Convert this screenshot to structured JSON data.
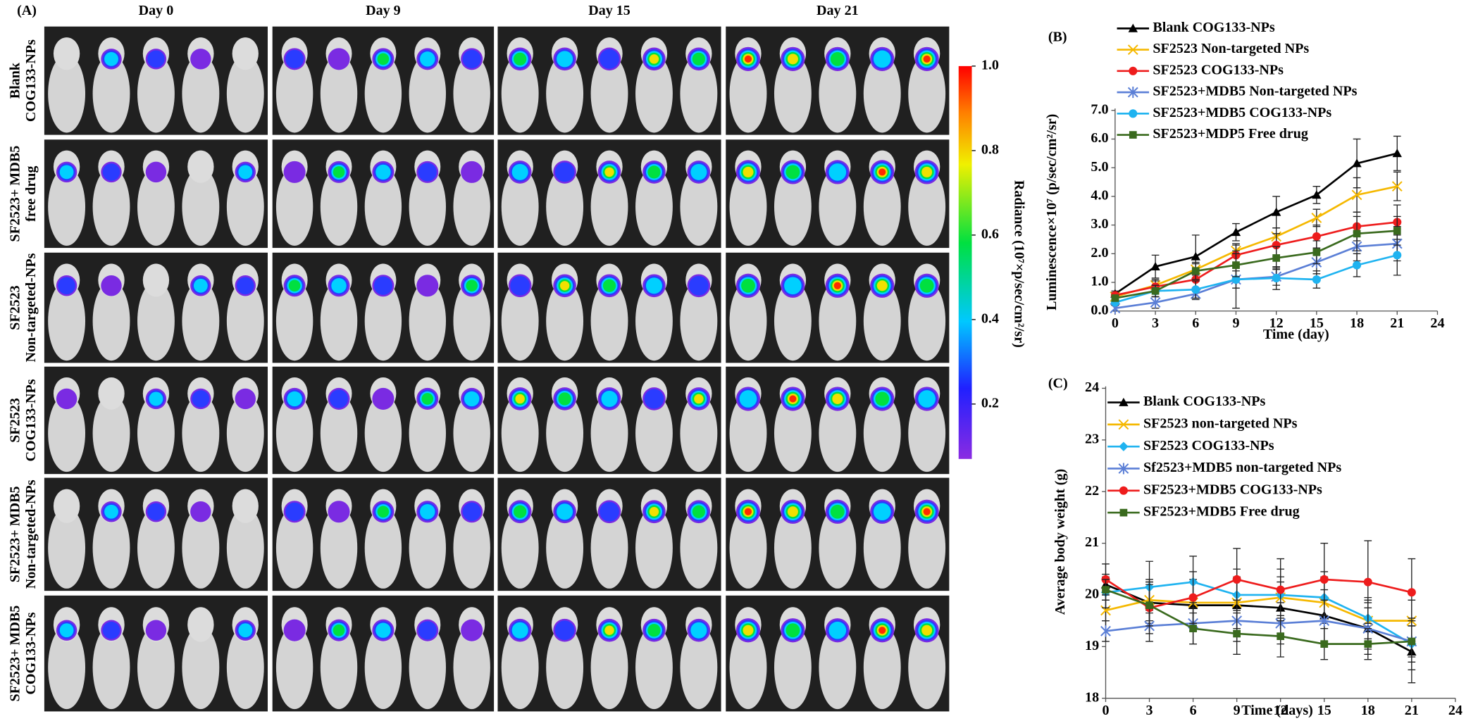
{
  "panel_a": {
    "label": "(A)",
    "columns": [
      "Day 0",
      "Day 9",
      "Day 15",
      "Day 21"
    ],
    "rows": [
      [
        "Blank",
        "COG133-NPs"
      ],
      [
        "SF2523+ MDB5",
        "free drug"
      ],
      [
        "SF2523",
        "Non-targeted-NPs"
      ],
      [
        "SF2523",
        "COG133-NPs"
      ],
      [
        "SF2523+ MDB5",
        "Non-targeted-NPs"
      ],
      [
        "SF2523+ MDB5",
        "COG133-NPs"
      ]
    ],
    "colorbar": {
      "title": "Radiance (10⁷×p/sec/cm²/sr)",
      "lim": [
        0.07,
        1.0
      ],
      "ticks": [
        {
          "value": 1.0,
          "label": "1.0"
        },
        0.8,
        0.6,
        0.4,
        0.2
      ]
    }
  },
  "chart_data": [
    {
      "type": "line",
      "label": "(B)",
      "x_label": "Time (day)",
      "y_label": "Luminescence×10⁷ (p/sec/cm²/sr)",
      "legend": "upper left",
      "grid": false,
      "x": [
        0,
        3,
        6,
        9,
        12,
        15,
        18,
        21
      ],
      "xlim": [
        0,
        24
      ],
      "xticks": [
        0,
        3,
        6,
        9,
        12,
        15,
        18,
        21,
        24
      ],
      "ylim": [
        0,
        7
      ],
      "yticks": [
        {
          "value": 0,
          "label": "0.0"
        },
        {
          "value": 1,
          "label": "1.0"
        },
        {
          "value": 2,
          "label": "2.0"
        },
        {
          "value": 3,
          "label": "3.0"
        },
        {
          "value": 4,
          "label": "4.0"
        },
        {
          "value": 5,
          "label": "5.0"
        },
        {
          "value": 6,
          "label": "6.0"
        },
        {
          "value": 7,
          "label": "7.0"
        }
      ],
      "series": [
        {
          "name": "Blank COG133-NPs",
          "color": "#000000",
          "marker": "triangle",
          "values": [
            0.6,
            1.55,
            1.9,
            2.75,
            3.45,
            4.05,
            5.15,
            5.5
          ],
          "errors": [
            0.1,
            0.4,
            0.75,
            0.3,
            0.55,
            0.3,
            0.85,
            0.6
          ]
        },
        {
          "name": "SF2523 Non-targeted NPs",
          "color": "#f5b800",
          "marker": "x",
          "values": [
            0.5,
            0.9,
            1.45,
            2.1,
            2.6,
            3.25,
            4.05,
            4.35
          ],
          "errors": [
            0.1,
            0.2,
            0.2,
            0.2,
            0.3,
            0.3,
            0.6,
            0.5
          ]
        },
        {
          "name": "SF2523 COG133-NPs",
          "color": "#ee1c1c",
          "marker": "circle",
          "values": [
            0.55,
            0.85,
            1.1,
            1.95,
            2.3,
            2.6,
            2.95,
            3.1
          ],
          "errors": [
            0.1,
            0.2,
            0.3,
            0.4,
            0.4,
            0.4,
            0.5,
            0.6
          ]
        },
        {
          "name": "SF2523+MDB5 Non-targeted NPs",
          "color": "#5b7fd6",
          "marker": "asterisk",
          "values": [
            0.1,
            0.3,
            0.6,
            1.1,
            1.2,
            1.7,
            2.25,
            2.35
          ],
          "errors": [
            0.1,
            0.2,
            0.2,
            0.3,
            0.3,
            0.4,
            0.5,
            0.6
          ]
        },
        {
          "name": "SF2523+MDB5 COG133-NPs",
          "color": "#1fb3f0",
          "marker": "circle",
          "values": [
            0.3,
            0.7,
            0.75,
            1.1,
            1.15,
            1.1,
            1.6,
            1.95
          ],
          "errors": [
            0.1,
            0.2,
            0.3,
            1.0,
            0.4,
            0.3,
            0.4,
            0.7
          ]
        },
        {
          "name": "SF2523+MDP5 Free drug",
          "color": "#3a6a1e",
          "marker": "square",
          "values": [
            0.45,
            0.7,
            1.4,
            1.6,
            1.85,
            2.05,
            2.7,
            2.8
          ],
          "errors": [
            0.1,
            0.2,
            0.3,
            0.4,
            0.4,
            0.4,
            0.6,
            0.5
          ]
        }
      ]
    },
    {
      "type": "line",
      "label": "(C)",
      "x_label": "Time (days)",
      "y_label": "Average body weight (g)",
      "legend": "upper left",
      "grid": false,
      "x": [
        0,
        3,
        6,
        9,
        12,
        15,
        18,
        21
      ],
      "xlim": [
        0,
        24
      ],
      "xticks": [
        0,
        3,
        6,
        9,
        12,
        15,
        18,
        21,
        24
      ],
      "ylim": [
        18,
        24
      ],
      "yticks": [
        18,
        19,
        20,
        21,
        22,
        23,
        24
      ],
      "series": [
        {
          "name": "Blank COG133-NPs",
          "color": "#000000",
          "marker": "triangle",
          "values": [
            20.2,
            19.85,
            19.8,
            19.8,
            19.75,
            19.6,
            19.35,
            18.9
          ],
          "errors": [
            0.2,
            0.4,
            0.5,
            0.5,
            0.5,
            0.5,
            0.5,
            0.6
          ]
        },
        {
          "name": "SF2523 non-targeted NPs",
          "color": "#f5b800",
          "marker": "x",
          "values": [
            19.7,
            19.9,
            19.85,
            19.85,
            19.95,
            19.85,
            19.5,
            19.5
          ],
          "errors": [
            0.2,
            0.4,
            0.4,
            0.5,
            0.4,
            0.5,
            0.4,
            0.4
          ]
        },
        {
          "name": "SF2523 COG133-NPs",
          "color": "#1fb3f0",
          "marker": "diamond",
          "values": [
            20.05,
            20.15,
            20.25,
            20.0,
            20.0,
            19.95,
            19.55,
            19.05
          ],
          "errors": [
            0.3,
            0.5,
            0.5,
            0.5,
            0.5,
            0.5,
            0.4,
            0.5
          ]
        },
        {
          "name": "Sf2523+MDB5 non-targeted NPs",
          "color": "#5b7fd6",
          "marker": "asterisk",
          "values": [
            19.3,
            19.4,
            19.45,
            19.5,
            19.45,
            19.5,
            19.35,
            19.1
          ],
          "errors": [
            0.2,
            0.3,
            0.4,
            0.4,
            0.4,
            0.4,
            0.4,
            0.4
          ]
        },
        {
          "name": "SF2523+MDB5 COG133-NPs",
          "color": "#ee1c1c",
          "marker": "circle",
          "values": [
            20.3,
            19.75,
            19.95,
            20.3,
            20.1,
            20.3,
            20.25,
            20.05
          ],
          "errors": [
            0.3,
            0.5,
            0.5,
            0.6,
            0.6,
            0.7,
            0.8,
            0.65
          ]
        },
        {
          "name": "SF2523+MDB5 Free drug",
          "color": "#3a6a1e",
          "marker": "square",
          "values": [
            20.1,
            19.8,
            19.35,
            19.25,
            19.2,
            19.05,
            19.05,
            19.1
          ],
          "errors": [
            0.2,
            0.4,
            0.3,
            0.4,
            0.4,
            0.3,
            0.3,
            0.3
          ]
        }
      ]
    }
  ]
}
